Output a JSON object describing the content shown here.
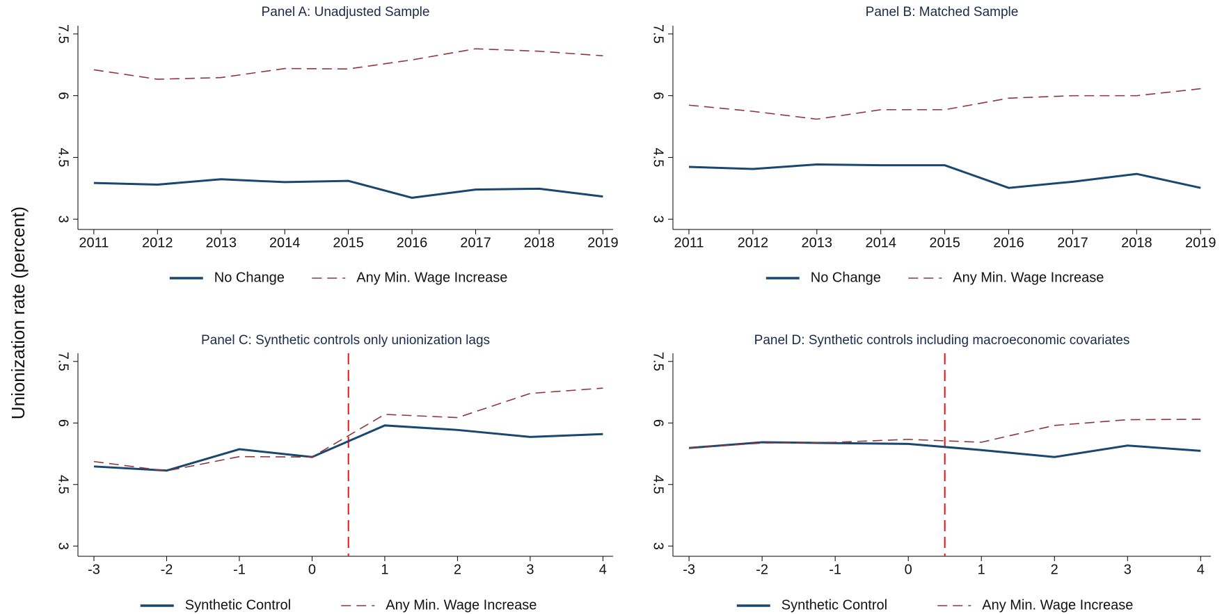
{
  "ylabel": "Unionization rate (percent)",
  "chart_data": [
    {
      "type": "line",
      "title": "Panel A: Unadjusted Sample",
      "x": [
        2011,
        2012,
        2013,
        2014,
        2015,
        2016,
        2017,
        2018,
        2019
      ],
      "xlim": [
        2010.75,
        2019.16
      ],
      "xticks": [
        2011,
        2012,
        2013,
        2014,
        2015,
        2016,
        2017,
        2018,
        2019
      ],
      "ylim": [
        2.75,
        7.7
      ],
      "yticks": [
        3,
        4.5,
        6,
        7.5
      ],
      "series": [
        {
          "name": "No Change",
          "color": "#1a476f",
          "style": "solid",
          "values": [
            3.88,
            3.84,
            3.97,
            3.9,
            3.93,
            3.52,
            3.72,
            3.74,
            3.55
          ]
        },
        {
          "name": "Any Min. Wage Increase",
          "color": "#90353b",
          "style": "dashed",
          "values": [
            6.63,
            6.4,
            6.44,
            6.66,
            6.65,
            6.87,
            7.14,
            7.08,
            6.97
          ]
        }
      ]
    },
    {
      "type": "line",
      "title": "Panel B: Matched Sample",
      "x": [
        2011,
        2012,
        2013,
        2014,
        2015,
        2016,
        2017,
        2018,
        2019
      ],
      "xlim": [
        2010.75,
        2019.16
      ],
      "xticks": [
        2011,
        2012,
        2013,
        2014,
        2015,
        2016,
        2017,
        2018,
        2019
      ],
      "ylim": [
        2.75,
        7.7
      ],
      "yticks": [
        3,
        4.5,
        6,
        7.5
      ],
      "series": [
        {
          "name": "No Change",
          "color": "#1a476f",
          "style": "solid",
          "values": [
            4.27,
            4.22,
            4.33,
            4.31,
            4.31,
            3.76,
            3.91,
            4.1,
            3.76
          ]
        },
        {
          "name": "Any Min. Wage Increase",
          "color": "#90353b",
          "style": "dashed",
          "values": [
            5.77,
            5.62,
            5.43,
            5.66,
            5.66,
            5.94,
            6.0,
            6.0,
            6.17
          ]
        }
      ]
    },
    {
      "type": "line",
      "title": "Panel C: Synthetic controls only unionization lags",
      "x": [
        -3,
        -2,
        -1,
        0,
        1,
        2,
        3,
        4
      ],
      "xlim": [
        -3.22,
        4.14
      ],
      "xticks": [
        -3,
        -2,
        -1,
        0,
        1,
        2,
        3,
        4
      ],
      "ylim": [
        2.75,
        7.7
      ],
      "yticks": [
        3,
        4.5,
        6,
        7.5
      ],
      "vline": 0.5,
      "vline_color": "#e8141a",
      "series": [
        {
          "name": "Synthetic Control",
          "color": "#1a476f",
          "style": "solid",
          "values": [
            4.94,
            4.84,
            5.36,
            5.17,
            5.94,
            5.83,
            5.66,
            5.73
          ]
        },
        {
          "name": "Any Min. Wage Increase",
          "color": "#90353b",
          "style": "dashed",
          "values": [
            5.06,
            4.83,
            5.18,
            5.17,
            6.21,
            6.13,
            6.72,
            6.85
          ]
        }
      ]
    },
    {
      "type": "line",
      "title": "Panel D: Synthetic controls including macroeconomic covariates",
      "x": [
        -3,
        -2,
        -1,
        0,
        1,
        2,
        3,
        4
      ],
      "xlim": [
        -3.22,
        4.14
      ],
      "xticks": [
        -3,
        -2,
        -1,
        0,
        1,
        2,
        3,
        4
      ],
      "ylim": [
        2.75,
        7.7
      ],
      "yticks": [
        3,
        4.5,
        6,
        7.5
      ],
      "vline": 0.5,
      "vline_color": "#e8141a",
      "series": [
        {
          "name": "Synthetic Control",
          "color": "#1a476f",
          "style": "solid",
          "values": [
            5.39,
            5.53,
            5.51,
            5.49,
            5.34,
            5.17,
            5.45,
            5.32
          ]
        },
        {
          "name": "Any Min. Wage Increase",
          "color": "#90353b",
          "style": "dashed",
          "values": [
            5.39,
            5.51,
            5.53,
            5.6,
            5.53,
            5.94,
            6.08,
            6.09
          ]
        }
      ]
    }
  ]
}
